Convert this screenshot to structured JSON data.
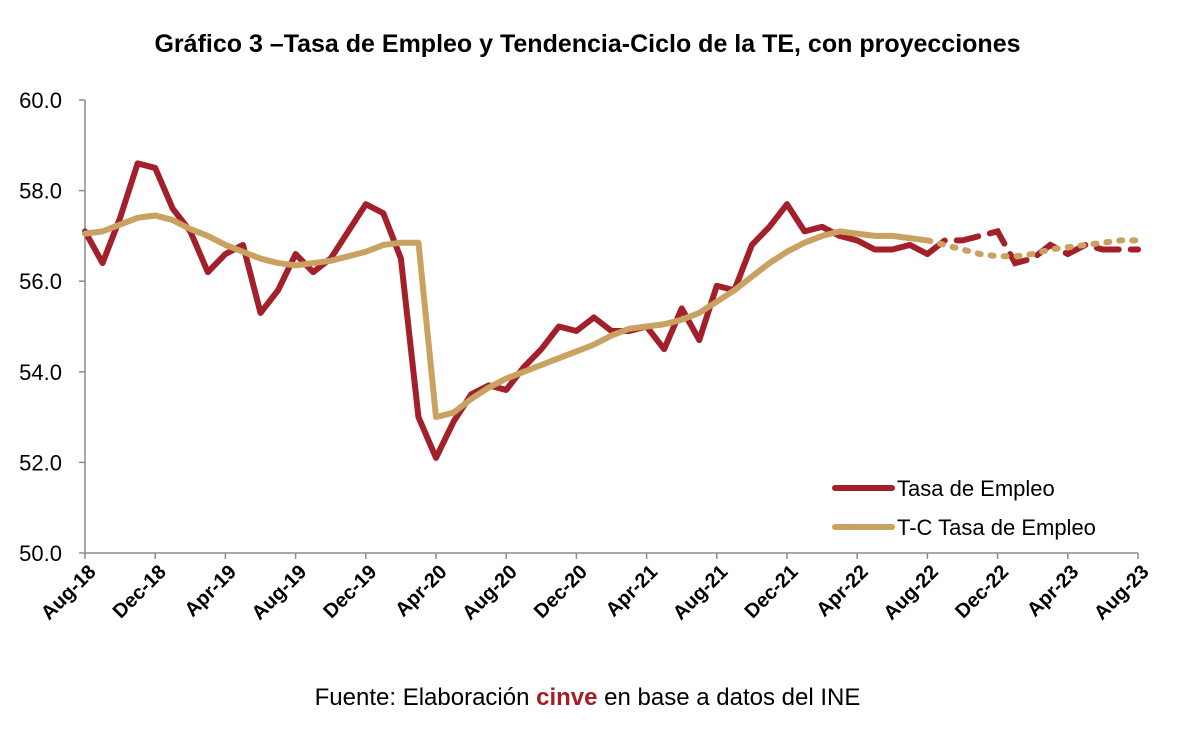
{
  "colors": {
    "tasa": "#a31f2a",
    "tendencia": "#c9a160",
    "brand": "#a31f23",
    "axis": "#8c8c8c"
  },
  "source": {
    "prefix": "Fuente: Elaboración ",
    "brand": "cinve",
    "suffix": " en base a datos del INE"
  },
  "chart_data": {
    "type": "line",
    "title": "Gráfico 3 –Tasa de Empleo y Tendencia-Ciclo de la TE, con proyecciones",
    "xlabel": "",
    "ylabel": "",
    "ylim": [
      50,
      60
    ],
    "yticks": [
      "50.0",
      "52.0",
      "54.0",
      "56.0",
      "58.0",
      "60.0"
    ],
    "grid": false,
    "legend_position": "bottom-right",
    "categories": [
      "Aug-18",
      "Sep-18",
      "Oct-18",
      "Nov-18",
      "Dec-18",
      "Jan-19",
      "Feb-19",
      "Mar-19",
      "Apr-19",
      "May-19",
      "Jun-19",
      "Jul-19",
      "Aug-19",
      "Sep-19",
      "Oct-19",
      "Nov-19",
      "Dec-19",
      "Jan-20",
      "Feb-20",
      "Mar-20",
      "Apr-20",
      "May-20",
      "Jun-20",
      "Jul-20",
      "Aug-20",
      "Sep-20",
      "Oct-20",
      "Nov-20",
      "Dec-20",
      "Jan-21",
      "Feb-21",
      "Mar-21",
      "Apr-21",
      "May-21",
      "Jun-21",
      "Jul-21",
      "Aug-21",
      "Sep-21",
      "Oct-21",
      "Nov-21",
      "Dec-21",
      "Jan-22",
      "Feb-22",
      "Mar-22",
      "Apr-22",
      "May-22",
      "Jun-22",
      "Jul-22",
      "Aug-22",
      "Sep-22",
      "Oct-22",
      "Nov-22",
      "Dec-22",
      "Jan-23",
      "Feb-23",
      "Mar-23",
      "Apr-23",
      "May-23",
      "Jun-23",
      "Jul-23",
      "Aug-23"
    ],
    "x_tick_labels": [
      "Aug-18",
      "Dec-18",
      "Apr-19",
      "Aug-19",
      "Dec-19",
      "Apr-20",
      "Aug-20",
      "Dec-20",
      "Apr-21",
      "Aug-21",
      "Dec-21",
      "Apr-22",
      "Aug-22",
      "Dec-22",
      "Apr-23",
      "Aug-23"
    ],
    "projection_start": "Aug-22",
    "series": [
      {
        "name": "Tasa de Empleo",
        "color": "#a31f2a",
        "style_observed": "solid",
        "style_projection": "dashed",
        "values": [
          57.1,
          56.4,
          57.4,
          58.6,
          58.5,
          57.6,
          57.1,
          56.2,
          56.6,
          56.8,
          55.3,
          55.8,
          56.6,
          56.2,
          56.5,
          57.1,
          57.7,
          57.5,
          56.5,
          53.0,
          52.1,
          52.9,
          53.5,
          53.7,
          53.6,
          54.1,
          54.5,
          55.0,
          54.9,
          55.2,
          54.9,
          54.9,
          55.0,
          54.5,
          55.4,
          54.7,
          55.9,
          55.8,
          56.8,
          57.2,
          57.7,
          57.1,
          57.2,
          57.0,
          56.9,
          56.7,
          56.7,
          56.8,
          56.6,
          56.9,
          56.9,
          57.0,
          57.1,
          56.4,
          56.5,
          56.8,
          56.6,
          56.8,
          56.7,
          56.7,
          56.7
        ]
      },
      {
        "name": "T-C Tasa de Empleo",
        "color": "#c9a160",
        "style_observed": "solid",
        "style_projection": "dotted",
        "values": [
          57.05,
          57.1,
          57.25,
          57.4,
          57.45,
          57.35,
          57.15,
          57.0,
          56.8,
          56.65,
          56.5,
          56.4,
          56.35,
          56.4,
          56.45,
          56.55,
          56.65,
          56.8,
          56.85,
          56.85,
          53.0,
          53.1,
          53.4,
          53.65,
          53.85,
          54.0,
          54.15,
          54.3,
          54.45,
          54.6,
          54.8,
          54.95,
          55.0,
          55.05,
          55.15,
          55.3,
          55.55,
          55.8,
          56.1,
          56.4,
          56.65,
          56.85,
          57.0,
          57.1,
          57.05,
          57.0,
          57.0,
          56.95,
          56.9,
          56.8,
          56.7,
          56.6,
          56.55,
          56.55,
          56.6,
          56.7,
          56.75,
          56.8,
          56.85,
          56.9,
          56.9
        ]
      }
    ]
  }
}
